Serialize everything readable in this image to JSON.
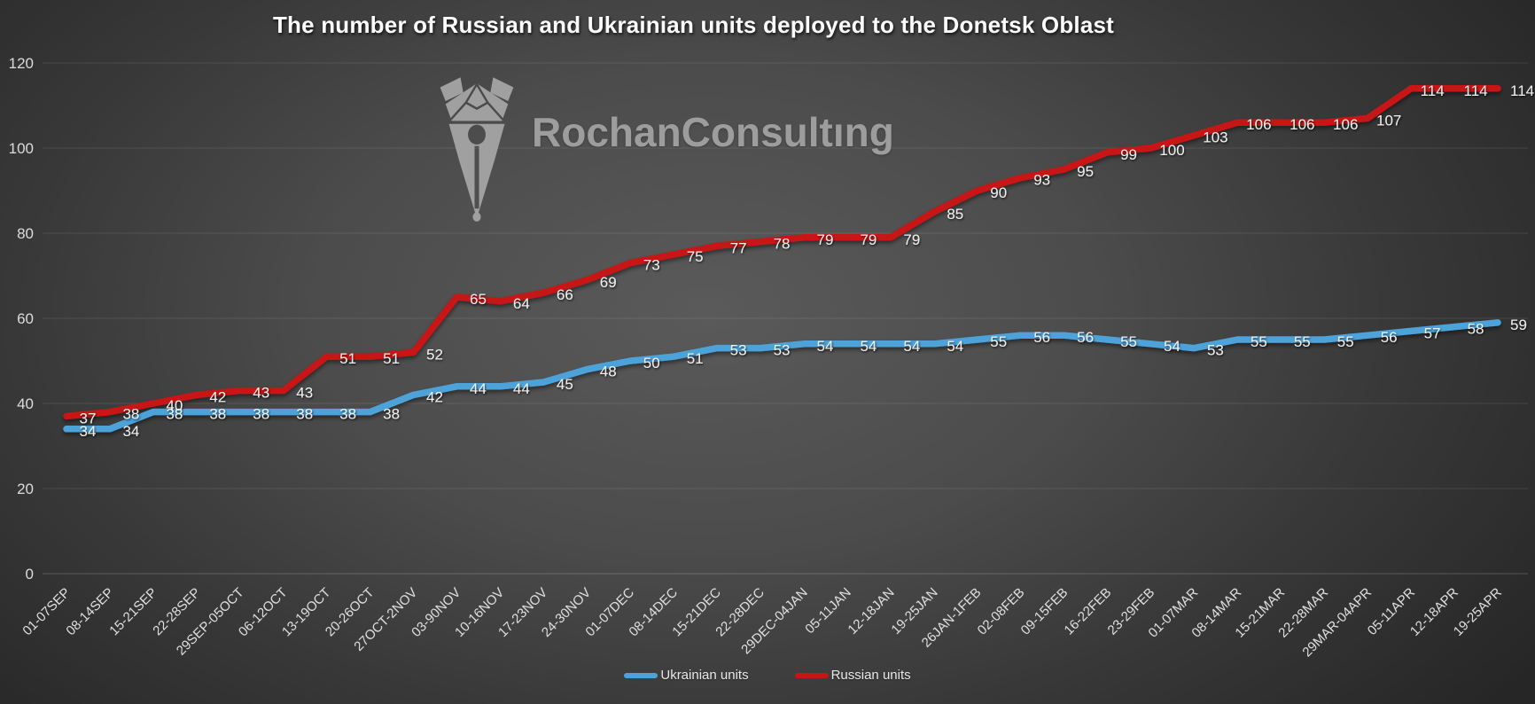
{
  "chart_data": {
    "type": "line",
    "title": "The number of Russian and Ukrainian units deployed to the Donetsk Oblast",
    "categories": [
      "01-07SEP",
      "08-14SEP",
      "15-21SEP",
      "22-28SEP",
      "29SEP-05OCT",
      "06-12OCT",
      "13-19OCT",
      "20-26OCT",
      "27OCT-2NOV",
      "03-90NOV",
      "10-16NOV",
      "17-23NOV",
      "24-30NOV",
      "01-07DEC",
      "08-14DEC",
      "15-21DEC",
      "22-28DEC",
      "29DEC-04JAN",
      "05-11JAN",
      "12-18JAN",
      "19-25JAN",
      "26JAN-1FEB",
      "02-08FEB",
      "09-15FEB",
      "16-22FEB",
      "23-29FEB",
      "01-07MAR",
      "08-14MAR",
      "15-21MAR",
      "22-28MAR",
      "29MAR-04APR",
      "05-11APR",
      "12-18APR",
      "19-25APR"
    ],
    "series": [
      {
        "name": "Ukrainian units",
        "color": "#4da2d9",
        "values": [
          34,
          34,
          38,
          38,
          38,
          38,
          38,
          38,
          42,
          44,
          44,
          45,
          48,
          50,
          51,
          53,
          53,
          54,
          54,
          54,
          54,
          55,
          56,
          56,
          55,
          54,
          53,
          55,
          55,
          55,
          56,
          57,
          58,
          59
        ]
      },
      {
        "name": "Russian units",
        "color": "#c81414",
        "values": [
          37,
          38,
          40,
          42,
          43,
          43,
          51,
          51,
          52,
          65,
          64,
          66,
          69,
          73,
          75,
          77,
          78,
          79,
          79,
          79,
          85,
          90,
          93,
          95,
          99,
          100,
          103,
          106,
          106,
          106,
          107,
          114,
          114,
          114
        ]
      }
    ],
    "ylim": [
      0,
      120
    ],
    "y_ticks": [
      0,
      20,
      40,
      60,
      80,
      100,
      120
    ],
    "grid": true,
    "data_labels": true,
    "legend_position": "bottom"
  },
  "watermark": {
    "text": "RochanConsultıng"
  },
  "colors": {
    "axis_text": "#dcdcdc",
    "x_tick_text": "#e0e0e0",
    "data_label_text": "#f0f0f0",
    "grid": "#ffffff",
    "watermark_gray": "#a0a0a0"
  }
}
